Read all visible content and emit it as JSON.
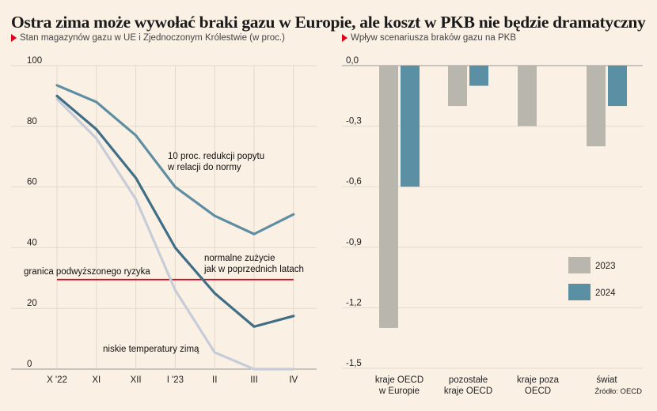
{
  "title": "Ostra zima może wywołać braki gazu w Europie, ale koszt w PKB nie będzie dramatyczny",
  "subtitle_left": "Stan magazynów gazu w UE i Zjednoczonym Królestwie (w proc.)",
  "subtitle_right": "Wpływ scenariusza braków gazu na PKB",
  "source": "Źródło: OECD",
  "colors": {
    "accent": "#e3001b",
    "dark": "#3f6e86",
    "mid": "#5f8ea3",
    "light": "#c7cdd8",
    "bar2023": "#b9b7ad",
    "bar2024": "#5b8fa3"
  },
  "chart_data": [
    {
      "type": "line",
      "categories": [
        "X '22",
        "XI",
        "XII",
        "I '23",
        "II",
        "III",
        "IV"
      ],
      "ylim": [
        0,
        100
      ],
      "yticks": [
        "0",
        "20",
        "40",
        "60",
        "80",
        "100"
      ],
      "series": [
        {
          "key": "demand_cut",
          "color": "#5f8ea3",
          "values": [
            93.5,
            88,
            77,
            60,
            50.5,
            44.5,
            51
          ]
        },
        {
          "key": "normal",
          "color": "#3f6e86",
          "values": [
            90,
            79,
            63,
            40,
            25,
            14,
            17.5
          ]
        },
        {
          "key": "cold",
          "color": "#c7cdd8",
          "values": [
            89,
            76,
            56,
            26,
            5.5,
            0,
            0
          ]
        }
      ],
      "reference_line": {
        "value": 29.5,
        "color": "#e3001b"
      },
      "annotations": {
        "demand_cut_line1": "10 proc. redukcji popytu",
        "demand_cut_line2": "w relacji do normy",
        "normal_line1": "normalne zużycie",
        "normal_line2": "jak w poprzednich latach",
        "cold": "niskie temperatury zimą",
        "threshold": "granica podwyższonego ryzyka"
      }
    },
    {
      "type": "bar",
      "categories": [
        [
          "kraje OECD",
          "w Europie"
        ],
        [
          "pozostałe",
          "kraje OECD"
        ],
        [
          "kraje poza",
          "OECD"
        ],
        [
          "świat"
        ]
      ],
      "ylim": [
        -1.5,
        0
      ],
      "yticks": [
        "0,0",
        "-0,3",
        "-0,6",
        "-0,9",
        "-1,2",
        "-1,5"
      ],
      "series": [
        {
          "name": "2023",
          "color": "#b9b7ad",
          "values": [
            -1.3,
            -0.2,
            -0.3,
            -0.4
          ]
        },
        {
          "name": "2024",
          "color": "#5b8fa3",
          "values": [
            -0.6,
            -0.1,
            null,
            -0.2
          ]
        }
      ],
      "legend": "bottom-right"
    }
  ]
}
